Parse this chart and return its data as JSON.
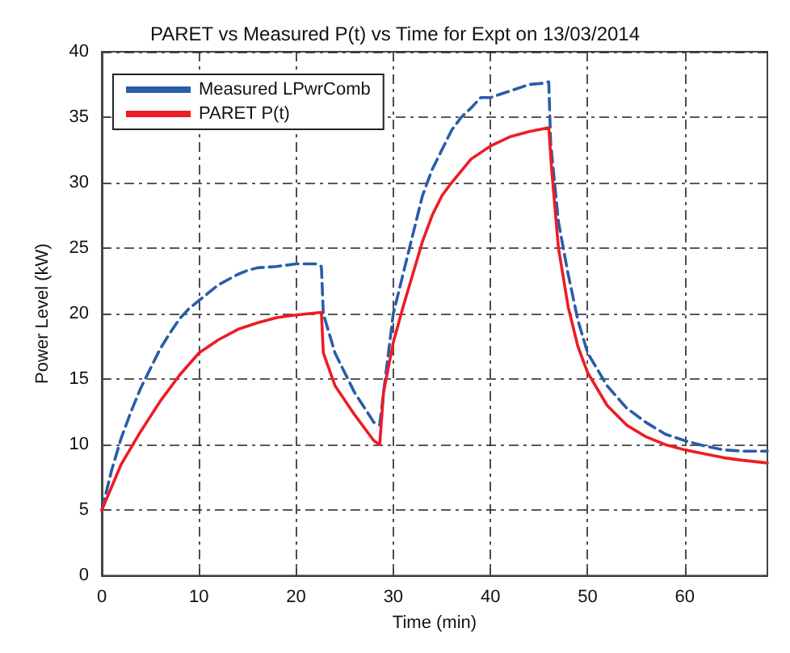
{
  "chart_data": {
    "type": "line",
    "title": "PARET vs Measured P(t) vs Time for Expt on 13/03/2014",
    "xlabel": "Time (min)",
    "ylabel": "Power Level (kW)",
    "xlim": [
      0,
      68.5
    ],
    "ylim": [
      0,
      40
    ],
    "xticks": [
      0,
      10,
      20,
      30,
      40,
      50,
      60
    ],
    "yticks": [
      0,
      5,
      10,
      15,
      20,
      25,
      30,
      35,
      40
    ],
    "grid": true,
    "legend": "top left",
    "marker": "none",
    "series": [
      {
        "name": "Measured LPwrComb",
        "color": "#2a5caa",
        "line_style": "dashed",
        "x": [
          0,
          1,
          2,
          3,
          4,
          5,
          6,
          7,
          8,
          9,
          10,
          11,
          12,
          13,
          14,
          15,
          16,
          18,
          20,
          22,
          22.6,
          22.8,
          24,
          26,
          28,
          28.6,
          29,
          30,
          31,
          32,
          33,
          34,
          35,
          36,
          37,
          38,
          39,
          40,
          42,
          44,
          45.5,
          46,
          46.2,
          47,
          48,
          49,
          50,
          52,
          54,
          56,
          58,
          60,
          62,
          64,
          66,
          68.5
        ],
        "values": [
          5,
          8,
          10.5,
          12.5,
          14.3,
          15.8,
          17.3,
          18.5,
          19.6,
          20.4,
          21,
          21.6,
          22.2,
          22.6,
          23,
          23.3,
          23.5,
          23.6,
          23.8,
          23.8,
          23.6,
          20,
          17,
          14,
          11.7,
          11.5,
          14,
          20,
          23,
          26,
          29,
          31,
          32.5,
          34,
          35,
          35.7,
          36.5,
          36.5,
          37,
          37.5,
          37.6,
          37.7,
          33,
          27,
          23,
          19.5,
          17,
          14.5,
          12.8,
          11.7,
          10.8,
          10.3,
          9.9,
          9.6,
          9.5,
          9.5
        ]
      },
      {
        "name": "PARET P(t)",
        "color": "#ee1c24",
        "line_style": "solid",
        "x": [
          0,
          2,
          4,
          6,
          8,
          10,
          12,
          14,
          16,
          18,
          20,
          22.6,
          22.8,
          24,
          26,
          28,
          28.6,
          29,
          30,
          31,
          32,
          33,
          34,
          35,
          36,
          38,
          40,
          42,
          44,
          46,
          46.3,
          47,
          48,
          49,
          50,
          52,
          54,
          56,
          58,
          60,
          62,
          64,
          66,
          68.5
        ],
        "values": [
          5,
          8.5,
          11,
          13.3,
          15.3,
          17,
          18,
          18.8,
          19.3,
          19.7,
          19.9,
          20.1,
          17,
          14.5,
          12.3,
          10.3,
          10,
          14,
          17.8,
          20.5,
          23,
          25.5,
          27.5,
          29,
          30,
          31.8,
          32.8,
          33.5,
          33.9,
          34.2,
          31,
          25,
          20.5,
          17.5,
          15.5,
          13,
          11.5,
          10.6,
          10,
          9.6,
          9.3,
          9,
          8.8,
          8.6
        ]
      }
    ]
  }
}
